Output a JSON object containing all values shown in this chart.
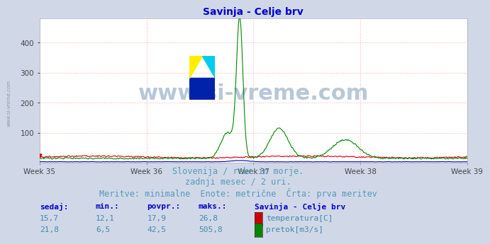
{
  "title": "Savinja - Celje brv",
  "title_color": "#0000cc",
  "background_color": "#d0d8e8",
  "plot_bg_color": "#ffffff",
  "grid_color": "#ffaaaa",
  "x_tick_labels": [
    "Week 35",
    "Week 36",
    "Week 37",
    "Week 38",
    "Week 39"
  ],
  "x_tick_positions": [
    0,
    84,
    168,
    252,
    336
  ],
  "ylim": [
    0,
    480
  ],
  "yticks": [
    100,
    200,
    300,
    400
  ],
  "n_points": 500,
  "temp_color": "#dd0000",
  "flow_color": "#008800",
  "height_color": "#0000bb",
  "watermark_text": "www.si-vreme.com",
  "watermark_color": "#b8c8d8",
  "watermark_fontsize": 22,
  "subtitle_lines": [
    "Slovenija / reke in morje.",
    "zadnji mesec / 2 uri.",
    "Meritve: minimalne  Enote: metrične  Črta: prva meritev"
  ],
  "subtitle_color": "#5599bb",
  "subtitle_fontsize": 8.5,
  "table_header": [
    "sedaj:",
    "min.:",
    "povpr.:",
    "maks.:",
    "Savinja - Celje brv"
  ],
  "table_row1": [
    "15,7",
    "12,1",
    "17,9",
    "26,8",
    "temperatura[C]"
  ],
  "table_row2": [
    "21,8",
    "6,5",
    "42,5",
    "505,8",
    "pretok[m3/s]"
  ],
  "table_color": "#4488aa",
  "table_header_color": "#0000cc",
  "temp_base": 20,
  "flow_base": 15,
  "sidewater_text": "www.si-vreme.com",
  "sidewater_color": "#8899aa"
}
